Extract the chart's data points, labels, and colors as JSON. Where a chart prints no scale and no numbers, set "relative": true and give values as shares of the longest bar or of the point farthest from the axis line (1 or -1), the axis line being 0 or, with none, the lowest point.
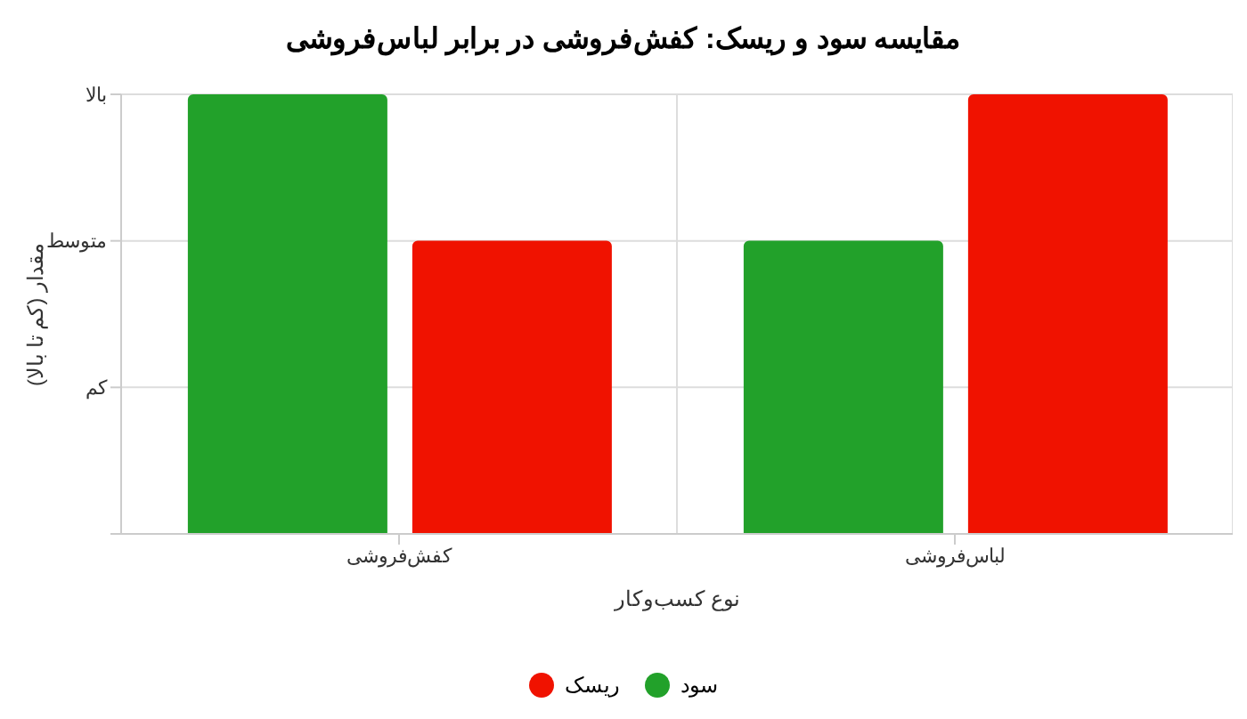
{
  "chart_data": {
    "type": "bar",
    "title": "مقایسه سود و ریسک: کفش‌فروشی در برابر لباس‌فروشی",
    "xlabel": "نوع کسب‌وکار",
    "ylabel": "مقدار (کم تا بالا)",
    "categories": [
      "کفش‌فروشی",
      "لباس‌فروشی"
    ],
    "series": [
      {
        "name": "سود",
        "color": "#22a12a",
        "values": [
          1,
          0.667
        ]
      },
      {
        "name": "ریسک",
        "color": "#f01200",
        "values": [
          0.667,
          1
        ]
      }
    ],
    "relative": true,
    "annotations": [
      "کم",
      "متوسط",
      "بالا"
    ],
    "grid": true,
    "legend": "bottom"
  }
}
